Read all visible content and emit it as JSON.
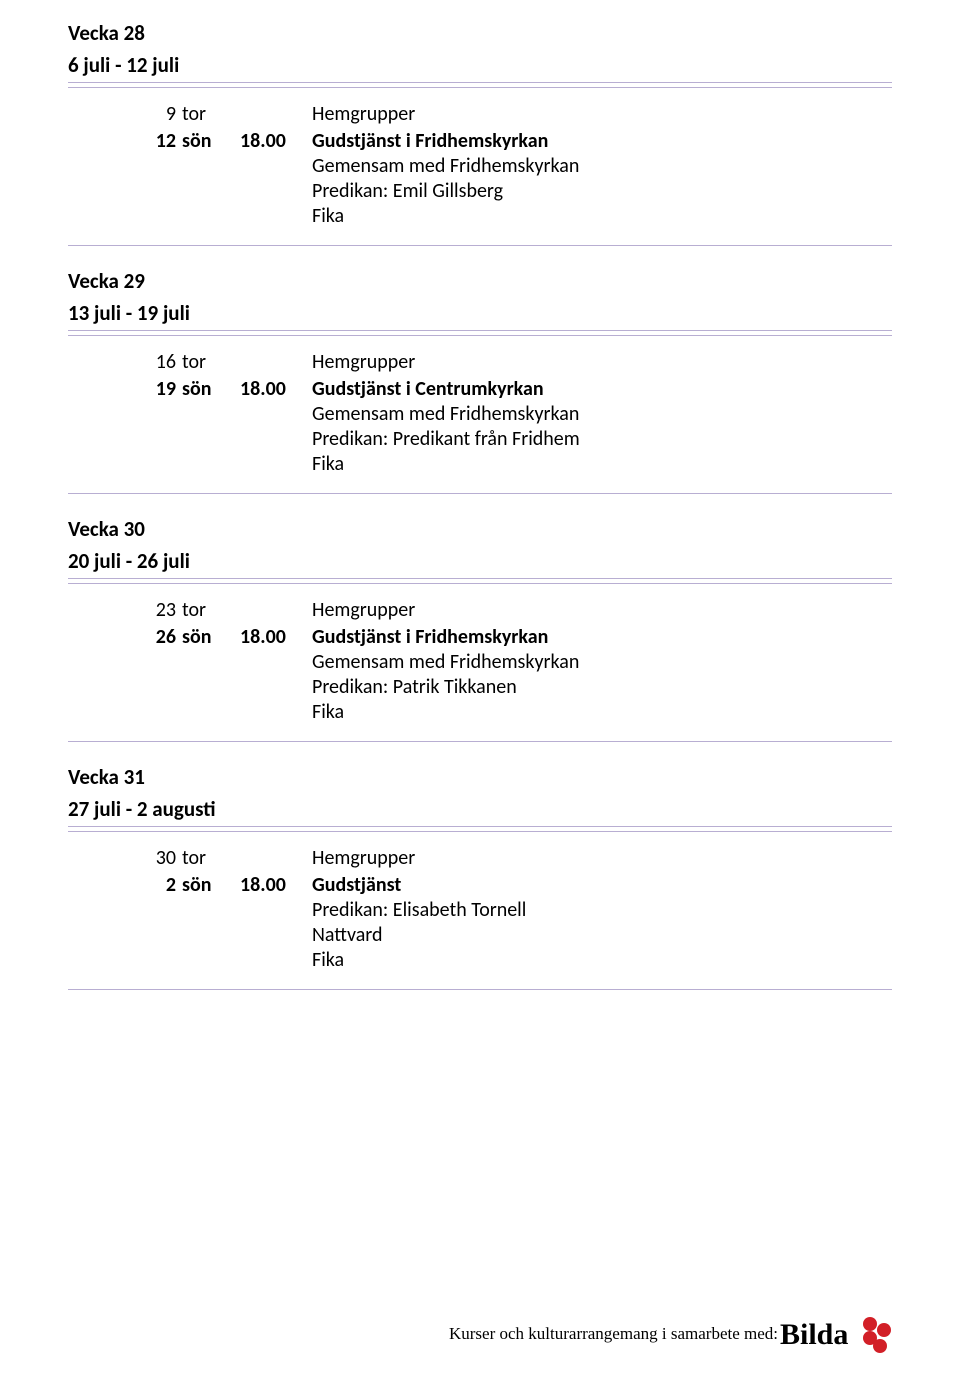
{
  "rule_color": "#b8aed2",
  "footer": {
    "text": "Kurser och kulturarrangemang i samarbete med:",
    "logo_word": "Bilda",
    "logo_color": "#d21f27",
    "logo_text_color": "#000000"
  },
  "weeks": [
    {
      "title": "Vecka 28",
      "range": "6 juli - 12 juli",
      "entries": [
        {
          "daynum": "9",
          "dayname": "tor",
          "time": "",
          "title": "Hemgrupper",
          "bold": false,
          "lines": []
        },
        {
          "daynum": "12",
          "dayname": "sön",
          "time": "18.00",
          "title": "Gudstjänst i Fridhemskyrkan",
          "bold": true,
          "lines": [
            "Gemensam med Fridhemskyrkan",
            "Predikan: Emil Gillsberg",
            "Fika"
          ]
        }
      ]
    },
    {
      "title": "Vecka 29",
      "range": "13 juli - 19 juli",
      "entries": [
        {
          "daynum": "16",
          "dayname": "tor",
          "time": "",
          "title": "Hemgrupper",
          "bold": false,
          "lines": []
        },
        {
          "daynum": "19",
          "dayname": "sön",
          "time": "18.00",
          "title": "Gudstjänst i Centrumkyrkan",
          "bold": true,
          "lines": [
            "Gemensam med Fridhemskyrkan",
            "Predikan: Predikant från Fridhem",
            "Fika"
          ]
        }
      ]
    },
    {
      "title": "Vecka 30",
      "range": "20 juli - 26 juli",
      "entries": [
        {
          "daynum": "23",
          "dayname": "tor",
          "time": "",
          "title": "Hemgrupper",
          "bold": false,
          "lines": []
        },
        {
          "daynum": "26",
          "dayname": "sön",
          "time": "18.00",
          "title": "Gudstjänst i Fridhemskyrkan",
          "bold": true,
          "lines": [
            "Gemensam med Fridhemskyrkan",
            "Predikan: Patrik Tikkanen",
            "Fika"
          ]
        }
      ]
    },
    {
      "title": "Vecka 31",
      "range": "27 juli - 2 augusti",
      "entries": [
        {
          "daynum": "30",
          "dayname": "tor",
          "time": "",
          "title": "Hemgrupper",
          "bold": false,
          "lines": []
        },
        {
          "daynum": "2",
          "dayname": "sön",
          "time": "18.00",
          "title": "Gudstjänst",
          "bold": true,
          "lines": [
            "Predikan: Elisabeth Tornell",
            "Nattvard",
            "Fika"
          ]
        }
      ]
    }
  ]
}
